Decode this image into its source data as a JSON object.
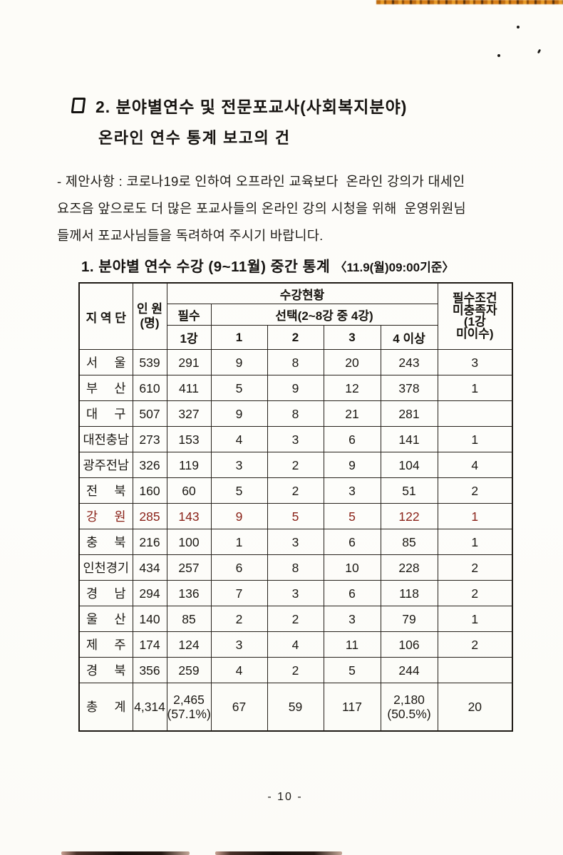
{
  "colors": {
    "highlight_row": "#8a2218",
    "ink": "#1b1813",
    "paper": "#fdfcf8",
    "scan_strip_orange": "#d88018"
  },
  "document": {
    "title_line1": "2. 분야별연수 및 전문포교사(사회복지분야)",
    "title_line2": "온라인 연수 통계 보고의 건",
    "paragraph_lines": [
      "- 제안사항 : 코로나19로 인하여 오프라인 교육보다  온라인 강의가 대세인",
      "요즈음 앞으로도 더 많은 포교사들의 온라인 강의 시청을 위해  운영위원님",
      "들께서 포교사님들을 독려하여 주시기 바랍니다."
    ],
    "page_number": "- 10 -"
  },
  "table": {
    "title": "1. 분야별 연수 수강 (9~11월) 중간 통계",
    "title_note": "〈11.9(월)09:00기준〉",
    "headers": {
      "region": "지 역 단",
      "personnel_lines": [
        "인 원",
        "(명)"
      ],
      "attendance": "수강현황",
      "required": "필수",
      "elective": "선택(2~8강 중 4강)",
      "sub": [
        "1강",
        "1",
        "2",
        "3",
        "4 이상"
      ],
      "unmet_lines": [
        "필수조건",
        "미충족자",
        "(1강",
        "미이수)"
      ]
    },
    "rows": [
      {
        "name": "서 울",
        "values": [
          "539",
          "291",
          "9",
          "8",
          "20",
          "243",
          "3"
        ]
      },
      {
        "name": "부 산",
        "values": [
          "610",
          "411",
          "5",
          "9",
          "12",
          "378",
          "1"
        ]
      },
      {
        "name": "대 구",
        "values": [
          "507",
          "327",
          "9",
          "8",
          "21",
          "281",
          ""
        ]
      },
      {
        "name": "대전충남",
        "values": [
          "273",
          "153",
          "4",
          "3",
          "6",
          "141",
          "1"
        ]
      },
      {
        "name": "광주전남",
        "values": [
          "326",
          "119",
          "3",
          "2",
          "9",
          "104",
          "4"
        ]
      },
      {
        "name": "전 북",
        "values": [
          "160",
          "60",
          "5",
          "2",
          "3",
          "51",
          "2"
        ]
      },
      {
        "name": "강 원",
        "values": [
          "285",
          "143",
          "9",
          "5",
          "5",
          "122",
          "1"
        ],
        "highlight": true
      },
      {
        "name": "충 북",
        "values": [
          "216",
          "100",
          "1",
          "3",
          "6",
          "85",
          "1"
        ]
      },
      {
        "name": "인천경기",
        "values": [
          "434",
          "257",
          "6",
          "8",
          "10",
          "228",
          "2"
        ]
      },
      {
        "name": "경 남",
        "values": [
          "294",
          "136",
          "7",
          "3",
          "6",
          "118",
          "2"
        ]
      },
      {
        "name": "울 산",
        "values": [
          "140",
          "85",
          "2",
          "2",
          "3",
          "79",
          "1"
        ]
      },
      {
        "name": "제 주",
        "values": [
          "174",
          "124",
          "3",
          "4",
          "11",
          "106",
          "2"
        ]
      },
      {
        "name": "경 북",
        "values": [
          "356",
          "259",
          "4",
          "2",
          "5",
          "244",
          ""
        ]
      },
      {
        "name": "총 계",
        "values": [
          "4,314",
          "2,465\n(57.1%)",
          "67",
          "59",
          "117",
          "2,180\n(50.5%)",
          "20"
        ],
        "tall": true
      }
    ]
  }
}
